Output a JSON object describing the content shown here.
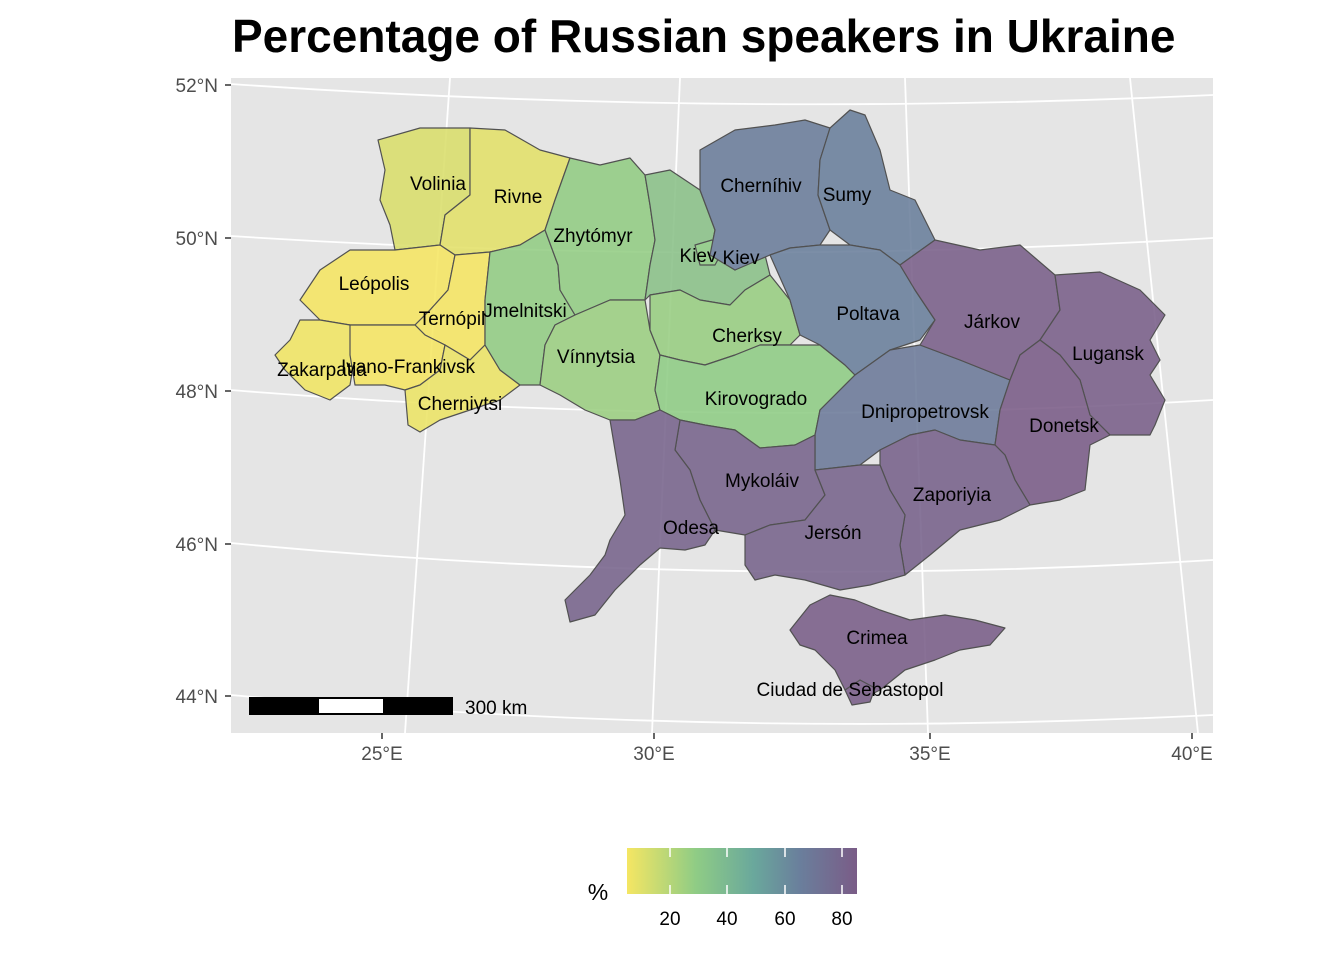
{
  "title": "Percentage of Russian speakers in Ukraine",
  "axes": {
    "lat_ticks": [
      "52°N",
      "50°N",
      "48°N",
      "46°N",
      "44°N"
    ],
    "lon_ticks": [
      "25°E",
      "30°E",
      "35°E",
      "40°E"
    ]
  },
  "colors": {
    "panel_bg": "#e5e5e5",
    "grid": "#ffffff",
    "low": "#f5e663",
    "mid_low": "#8fcc85",
    "mid_high": "#6a7f9c",
    "high": "#7a5c87"
  },
  "legend": {
    "title": "%",
    "ticks": [
      "20",
      "40",
      "60",
      "80"
    ],
    "min": 5,
    "max": 85
  },
  "scale_bar": {
    "label": "300 km"
  },
  "regions": [
    {
      "name": "Volinia",
      "pct": 11
    },
    {
      "name": "Rivne",
      "pct": 9
    },
    {
      "name": "Leópolis",
      "pct": 5
    },
    {
      "name": "Ternópil",
      "pct": 4
    },
    {
      "name": "Zakarpatia",
      "pct": 6
    },
    {
      "name": "Ivano-Frankivsk",
      "pct": 5
    },
    {
      "name": "Cherniytsi",
      "pct": 7
    },
    {
      "name": "Jmelnitski",
      "pct": 27
    },
    {
      "name": "Zhytómyr",
      "pct": 27
    },
    {
      "name": "Kiev",
      "pct": 33
    },
    {
      "name": "Kiev",
      "pct": 28
    },
    {
      "name": "Vínnytsia",
      "pct": 25
    },
    {
      "name": "Cherksy",
      "pct": 26
    },
    {
      "name": "Kirovogrado",
      "pct": 28
    },
    {
      "name": "Cherníhiv",
      "pct": 63
    },
    {
      "name": "Sumy",
      "pct": 62
    },
    {
      "name": "Poltava",
      "pct": 62
    },
    {
      "name": "Dnipropetrovsk",
      "pct": 65
    },
    {
      "name": "Járkov",
      "pct": 83
    },
    {
      "name": "Lugansk",
      "pct": 83
    },
    {
      "name": "Donetsk",
      "pct": 85
    },
    {
      "name": "Zaporiyia",
      "pct": 81
    },
    {
      "name": "Mykoláiv",
      "pct": 80
    },
    {
      "name": "Odesa",
      "pct": 80
    },
    {
      "name": "Jersón",
      "pct": 80
    },
    {
      "name": "Crimea",
      "pct": 84
    },
    {
      "name": "Ciudad de Sebastopol",
      "pct": 84
    }
  ]
}
